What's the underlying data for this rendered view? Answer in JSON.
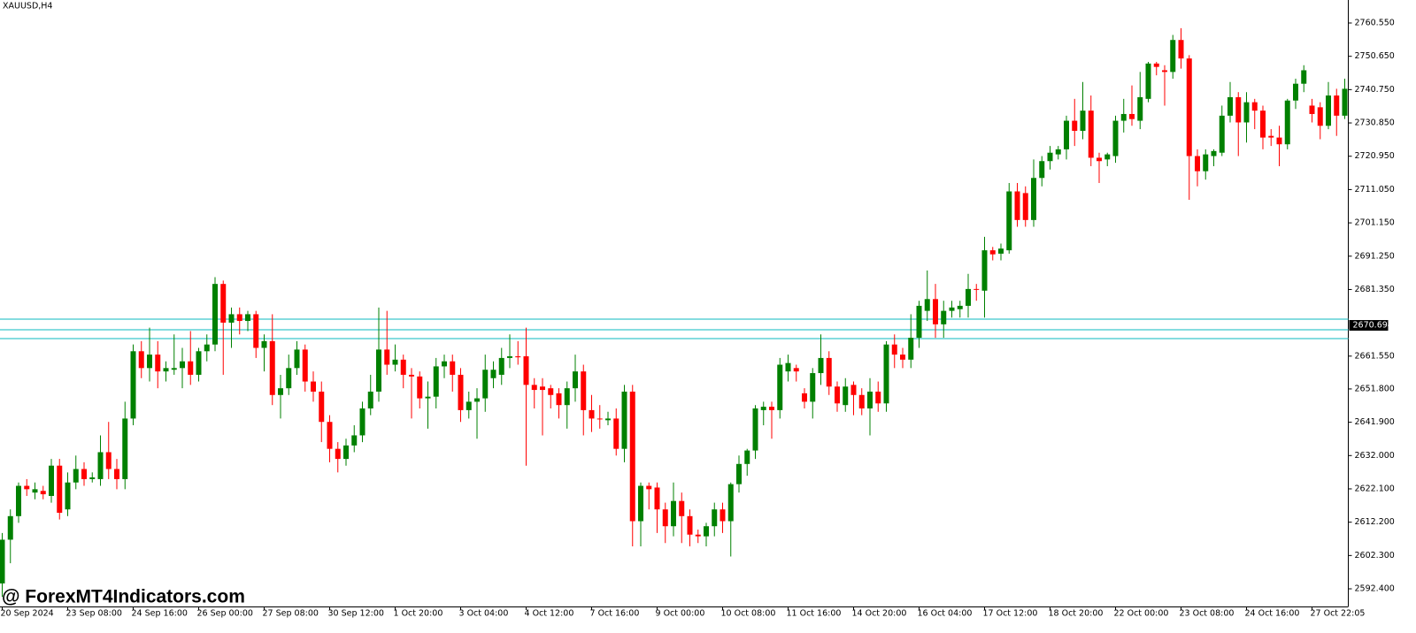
{
  "chart_data": {
    "type": "candlestick",
    "title": "XAUUSD,H4",
    "watermark": "@ ForexMT4Indicators.com",
    "up_color": "#008000",
    "down_color": "#ff0000",
    "categories": [
      "20 Sep 2024",
      null,
      null,
      null,
      null,
      null,
      null,
      null,
      "23 Sep 08:00",
      null,
      null,
      null,
      null,
      null,
      null,
      null,
      "24 Sep 16:00",
      null,
      null,
      null,
      null,
      null,
      null,
      null,
      "26 Sep 00:00",
      null,
      null,
      null,
      null,
      null,
      null,
      null,
      "27 Sep 08:00",
      null,
      null,
      null,
      null,
      null,
      null,
      null,
      "30 Sep 12:00",
      null,
      null,
      null,
      null,
      null,
      null,
      null,
      "1 Oct 20:00",
      null,
      null,
      null,
      null,
      null,
      null,
      null,
      "3 Oct 04:00",
      null,
      null,
      null,
      null,
      null,
      null,
      null,
      "4 Oct 12:00",
      null,
      null,
      null,
      null,
      null,
      null,
      null,
      "7 Oct 16:00",
      null,
      null,
      null,
      null,
      null,
      null,
      null,
      "9 Oct 00:00",
      null,
      null,
      null,
      null,
      null,
      null,
      null,
      "10 Oct 08:00",
      null,
      null,
      null,
      null,
      null,
      null,
      null,
      "11 Oct 16:00",
      null,
      null,
      null,
      null,
      null,
      null,
      null,
      "14 Oct 20:00",
      null,
      null,
      null,
      null,
      null,
      null,
      null,
      "16 Oct 04:00",
      null,
      null,
      null,
      null,
      null,
      null,
      null,
      "17 Oct 12:00",
      null,
      null,
      null,
      null,
      null,
      null,
      null,
      "18 Oct 20:00",
      null,
      null,
      null,
      null,
      null,
      null,
      null,
      "22 Oct 00:00",
      null,
      null,
      null,
      null,
      null,
      null,
      null,
      "23 Oct 08:00",
      null,
      null,
      null,
      null,
      null,
      null,
      null,
      "24 Oct 16:00",
      null,
      null,
      null,
      null,
      null,
      null,
      null,
      "27 Oct 22:05",
      null,
      null,
      null,
      null
    ],
    "open": [
      2594,
      2607,
      2614,
      2623,
      2621,
      2621.5,
      2620,
      2629,
      2616,
      2624,
      2628,
      2625,
      2625,
      2633,
      2628,
      2625,
      2643,
      2663,
      2658,
      2662,
      2657,
      2657.5,
      2658,
      2660,
      2656,
      2663,
      2665,
      2683,
      2671.5,
      2674,
      2672,
      2674,
      2664,
      2666,
      2650,
      2652,
      2658,
      2663.5,
      2654,
      2651,
      2642,
      2634,
      2631,
      2635,
      2638,
      2646,
      2651,
      2663.5,
      2659,
      2660.5,
      2656,
      2655.5,
      2649,
      2649.5,
      2658.5,
      2660,
      2656,
      2645.5,
      2648,
      2649,
      2655,
      2656,
      2661,
      2661.5,
      2661.5,
      2653,
      2652.5,
      2652,
      2650.5,
      2647,
      2652,
      2657,
      2645.5,
      2643,
      2642.5,
      2643,
      2634,
      2651,
      2612.5,
      2623,
      2622.5,
      2616,
      2611,
      2618.5,
      2614,
      2608.5,
      2608,
      2611,
      2616,
      2612.5,
      2623.5,
      2629.5,
      2633.5,
      2645.5,
      2646.5,
      2645.5,
      2657,
      2658,
      2650.5,
      2648,
      2656.5,
      2661,
      2652.5,
      2647,
      2653,
      2650,
      2646,
      2651,
      2647.5,
      2665,
      2662,
      2660.5,
      2667,
      2675,
      2678.5,
      2671,
      2675,
      2675.5,
      2676.5,
      2681.5,
      2681,
      2693,
      2692,
      2693,
      2710.5,
      2710,
      2702,
      2714.5,
      2719.5,
      2721.5,
      2723,
      2731.5,
      2728.5,
      2734.5,
      2720.5,
      2720,
      2721,
      2731.5,
      2733.5,
      2731.5,
      2738,
      2748.5,
      2746.5,
      2746,
      2755.5,
      2750,
      2721,
      2716.5,
      2721,
      2722,
      2733,
      2738.5,
      2731,
      2737,
      2734.5,
      2727,
      2726.5,
      2724.5,
      2737.5,
      2742.5,
      2736,
      2735.5,
      2730,
      2739,
      2733
    ],
    "high": [
      2609,
      2616,
      2624,
      2625,
      2624,
      2623,
      2631,
      2631,
      2627,
      2632,
      2630,
      2627,
      2638,
      2642,
      2631,
      2648,
      2665,
      2666,
      2670,
      2666,
      2660,
      2668,
      2664,
      2669,
      2664,
      2668,
      2685,
      2684,
      2676,
      2676,
      2675,
      2675,
      2668,
      2674,
      2656,
      2662,
      2666,
      2665,
      2657,
      2654,
      2644,
      2636,
      2637,
      2641,
      2648,
      2656,
      2676,
      2675,
      2665,
      2662,
      2658,
      2657,
      2654,
      2661,
      2662,
      2662,
      2658,
      2651,
      2652,
      2662,
      2660,
      2664,
      2668,
      2666,
      2670,
      2655,
      2655,
      2653,
      2652,
      2654,
      2662,
      2659,
      2650,
      2647,
      2645,
      2646,
      2653,
      2653,
      2624,
      2624,
      2624,
      2618,
      2624,
      2621,
      2616,
      2610,
      2612,
      2618,
      2618,
      2624,
      2632,
      2634,
      2647,
      2648,
      2648,
      2661,
      2662,
      2659,
      2652,
      2658,
      2668,
      2663,
      2654,
      2655,
      2654,
      2652,
      2655,
      2654,
      2666,
      2668,
      2664,
      2674,
      2678,
      2687,
      2683,
      2678,
      2678,
      2678,
      2686,
      2683,
      2697,
      2694,
      2695,
      2713,
      2713,
      2712,
      2720,
      2721,
      2724,
      2724,
      2733,
      2738,
      2743,
      2739,
      2722,
      2722,
      2733,
      2738,
      2742,
      2746,
      2749,
      2749,
      2748,
      2757,
      2759,
      2751,
      2723,
      2723,
      2723,
      2736,
      2743,
      2740,
      2740,
      2738,
      2736,
      2729,
      2730,
      2738,
      2744,
      2748,
      2738,
      2737,
      2743,
      2741,
      2744
    ],
    "low": [
      2590,
      2600,
      2612,
      2620,
      2619,
      2619,
      2618,
      2613,
      2614,
      2622,
      2623,
      2624,
      2623,
      2625,
      2622,
      2622,
      2641,
      2655,
      2654,
      2652,
      2654,
      2656,
      2652,
      2653,
      2654,
      2660,
      2663,
      2656,
      2664,
      2668,
      2669,
      2661,
      2657,
      2647,
      2643,
      2650,
      2656,
      2651,
      2648,
      2636,
      2630,
      2627,
      2629,
      2633,
      2636,
      2644,
      2648,
      2656,
      2657,
      2652,
      2643,
      2646,
      2640,
      2646,
      2655,
      2651,
      2642,
      2643,
      2637,
      2645,
      2652,
      2653,
      2658,
      2659,
      2629,
      2646,
      2638,
      2646,
      2643,
      2640,
      2648,
      2638,
      2639,
      2640,
      2641,
      2632,
      2630,
      2605,
      2605,
      2616,
      2609,
      2606,
      2608,
      2606,
      2605,
      2606,
      2605,
      2608,
      2609,
      2602,
      2621,
      2626,
      2631,
      2641,
      2637,
      2643,
      2654,
      2654,
      2646,
      2643,
      2653,
      2650,
      2645,
      2645,
      2644,
      2644,
      2638,
      2645,
      2645,
      2658,
      2658,
      2658,
      2664,
      2672,
      2667,
      2667,
      2673,
      2673,
      2673,
      2678,
      2673,
      2690,
      2690,
      2692,
      2700,
      2700,
      2700,
      2712,
      2717,
      2720,
      2720,
      2724,
      2726,
      2718,
      2713,
      2718,
      2719,
      2728,
      2730,
      2729,
      2737,
      2745,
      2736,
      2744,
      2747,
      2708,
      2712,
      2714,
      2718,
      2721,
      2731,
      2721,
      2725,
      2729,
      2723,
      2724,
      2718,
      2723,
      2735,
      2740,
      2731,
      2726,
      2729,
      2727,
      2732
    ],
    "close": [
      2607,
      2614,
      2623,
      2622,
      2622,
      2620.5,
      2629,
      2615,
      2624,
      2628,
      2625,
      2625.5,
      2633,
      2628,
      2625,
      2643,
      2663,
      2658,
      2662,
      2657,
      2658,
      2658,
      2660,
      2656,
      2663,
      2665,
      2683,
      2671.5,
      2674,
      2672,
      2674,
      2664,
      2666,
      2650,
      2652,
      2658,
      2663.5,
      2654,
      2651,
      2642,
      2634,
      2631,
      2635,
      2638,
      2646,
      2651,
      2663.5,
      2659,
      2660.5,
      2656,
      2655.5,
      2649,
      2649.5,
      2658.5,
      2660,
      2656,
      2645.5,
      2648,
      2649,
      2657.5,
      2657.5,
      2661,
      2661.5,
      2661.2,
      2653,
      2651.5,
      2651.5,
      2650,
      2647,
      2652,
      2657,
      2645.5,
      2643,
      2642.8,
      2643,
      2634,
      2651,
      2612.5,
      2623,
      2622,
      2616,
      2611,
      2618.5,
      2614,
      2608.5,
      2608,
      2611,
      2616,
      2612.5,
      2623.5,
      2629.5,
      2633.5,
      2646,
      2646.5,
      2645.5,
      2659,
      2659.5,
      2657,
      2648,
      2656.5,
      2661,
      2652.5,
      2647.5,
      2652.5,
      2650,
      2646,
      2651,
      2647.5,
      2665,
      2662,
      2660.5,
      2667,
      2676.5,
      2678.5,
      2671,
      2675,
      2676,
      2676.5,
      2681.5,
      2681.3,
      2693,
      2691.8,
      2693.5,
      2710.5,
      2702,
      2702,
      2714.5,
      2719.5,
      2722,
      2723,
      2731.5,
      2728.5,
      2734.5,
      2720.5,
      2719.5,
      2721.5,
      2731.5,
      2733.5,
      2732,
      2738.5,
      2748.5,
      2747.5,
      2746,
      2755.5,
      2750,
      2721,
      2716.5,
      2721.5,
      2722.5,
      2733,
      2738.5,
      2731,
      2737,
      2734.5,
      2726.5,
      2726.5,
      2724.5,
      2737.5,
      2742.5,
      2746.5,
      2733.5,
      2730,
      2739,
      2733,
      2741
    ],
    "ylim": [
      2587.15,
      2767.38
    ],
    "yticks": [
      {
        "value": 2592.4,
        "label": "2592.400"
      },
      {
        "value": 2602.3,
        "label": "2602.300"
      },
      {
        "value": 2612.2,
        "label": "2612.200"
      },
      {
        "value": 2622.1,
        "label": "2622.100"
      },
      {
        "value": 2632.0,
        "label": "2632.000"
      },
      {
        "value": 2641.9,
        "label": "2641.900"
      },
      {
        "value": 2651.8,
        "label": "2651.800"
      },
      {
        "value": 2661.55,
        "label": "2661.550"
      },
      {
        "value": 2681.35,
        "label": "2681.350"
      },
      {
        "value": 2691.25,
        "label": "2691.250"
      },
      {
        "value": 2701.15,
        "label": "2701.150"
      },
      {
        "value": 2711.05,
        "label": "2711.050"
      },
      {
        "value": 2720.95,
        "label": "2720.950"
      },
      {
        "value": 2730.85,
        "label": "2730.850"
      },
      {
        "value": 2740.75,
        "label": "2740.750"
      },
      {
        "value": 2750.65,
        "label": "2750.650"
      },
      {
        "value": 2760.55,
        "label": "2760.550"
      }
    ],
    "hlines": [
      2672.53,
      2669.38,
      2666.75
    ],
    "hline_color": "#3cc8cc",
    "price_label": 2670.694
  }
}
